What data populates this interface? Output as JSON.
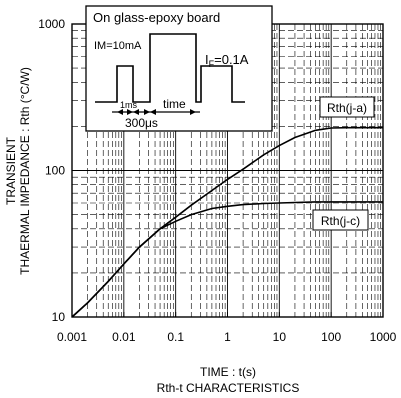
{
  "chart_data": {
    "type": "line",
    "title": "Rth-t CHARACTERISTICS",
    "xlabel": "TIME : t(s)",
    "ylabel_line1": "TRANSIENT",
    "ylabel_line2": "THAERMAL IMPEDANCE : Rth (°C/W)",
    "x_scale": "log",
    "y_scale": "log",
    "xlim": [
      0.001,
      1000
    ],
    "ylim": [
      10,
      1000
    ],
    "x_ticks": [
      {
        "value": 0.001,
        "label": "0.001"
      },
      {
        "value": 0.01,
        "label": "0.01"
      },
      {
        "value": 0.1,
        "label": "0.1"
      },
      {
        "value": 1,
        "label": "1"
      },
      {
        "value": 10,
        "label": "10"
      },
      {
        "value": 100,
        "label": "100"
      },
      {
        "value": 1000,
        "label": "1000"
      }
    ],
    "y_ticks": [
      {
        "value": 10,
        "label": "10"
      },
      {
        "value": 100,
        "label": "100"
      },
      {
        "value": 1000,
        "label": "1000"
      }
    ],
    "grid": true,
    "series": [
      {
        "name": "Rth(j-a)",
        "color": "#000000",
        "x": [
          0.001,
          0.002,
          0.005,
          0.01,
          0.02,
          0.05,
          0.1,
          0.2,
          0.5,
          1,
          2,
          5,
          10,
          20,
          50,
          100,
          200,
          500,
          1000
        ],
        "y": [
          10,
          12.5,
          17.5,
          23,
          30,
          40,
          48,
          58,
          73,
          87,
          102,
          128,
          148,
          168,
          188,
          195,
          196,
          196,
          196
        ]
      },
      {
        "name": "Rth(j-c)",
        "color": "#000000",
        "x": [
          0.001,
          0.002,
          0.005,
          0.01,
          0.02,
          0.05,
          0.1,
          0.2,
          0.5,
          1,
          2,
          5,
          10,
          20,
          50,
          100,
          200,
          500,
          1000
        ],
        "y": [
          10,
          12.5,
          17.5,
          23,
          30,
          40,
          45,
          50,
          55,
          57,
          58.5,
          59.5,
          60,
          60.5,
          61,
          61,
          61,
          61,
          61
        ]
      }
    ],
    "inset": {
      "title": "On glass-epoxy board",
      "im_label": "IM=10mA",
      "if_label": "I",
      "if_sub": "F",
      "if_value": "=0.1A",
      "ms_label": "1ms",
      "time_label": "time",
      "us_label": "300μs"
    }
  }
}
